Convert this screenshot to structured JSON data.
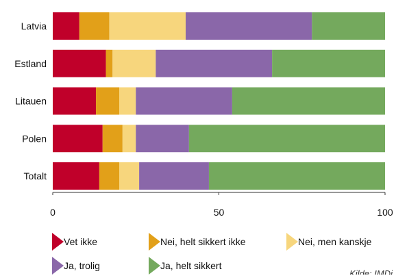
{
  "chart_data": {
    "type": "bar",
    "orientation": "horizontal",
    "stacked": true,
    "categories": [
      "Latvia",
      "Estland",
      "Litauen",
      "Polen",
      "Totalt"
    ],
    "series": [
      {
        "name": "Vet ikke",
        "color": "#c0002a",
        "values": [
          8,
          16,
          13,
          15,
          14
        ]
      },
      {
        "name": "Nei, helt sikkert ikke",
        "color": "#e2a019",
        "values": [
          9,
          2,
          7,
          6,
          6
        ]
      },
      {
        "name": "Nei, men kanskje",
        "color": "#f7d67d",
        "values": [
          23,
          13,
          5,
          4,
          6
        ]
      },
      {
        "name": "Ja, trolig",
        "color": "#8a67a9",
        "values": [
          38,
          35,
          29,
          16,
          21
        ]
      },
      {
        "name": "Ja, helt sikkert",
        "color": "#74a95d",
        "values": [
          22,
          34,
          46,
          59,
          53
        ]
      }
    ],
    "xlim": [
      0,
      100
    ],
    "xticks": [
      0,
      50,
      100
    ],
    "grid": false,
    "legend_position": "bottom",
    "source": "Kilde: IMDi"
  }
}
